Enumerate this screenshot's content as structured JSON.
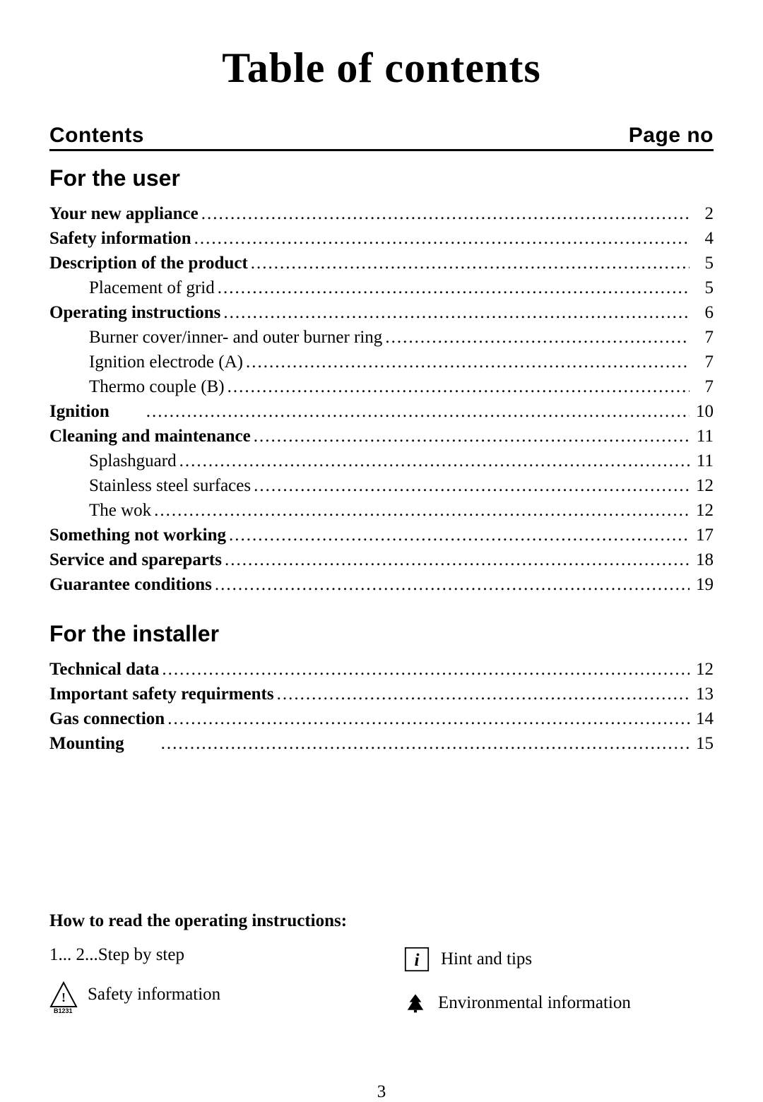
{
  "title": "Table of contents",
  "header": {
    "left": "Contents",
    "right": "Page no"
  },
  "sections": {
    "user": {
      "heading": "For the user",
      "items": [
        {
          "label": "Your new appliance",
          "page": "2",
          "bold": true
        },
        {
          "label": "Safety information",
          "page": "4",
          "bold": true
        },
        {
          "label": "Description of the product",
          "page": "5",
          "bold": true
        },
        {
          "label": "Placement of grid",
          "page": "5",
          "bold": false,
          "sub": true
        },
        {
          "label": "Operating instructions",
          "page": "6",
          "bold": true
        },
        {
          "label": "Burner cover/inner- and outer burner ring",
          "page": "7",
          "bold": false,
          "sub": true
        },
        {
          "label": "Ignition electrode (A)",
          "page": "7",
          "bold": false,
          "sub": true
        },
        {
          "label": "Thermo couple (B)",
          "page": "7",
          "bold": false,
          "sub": true
        },
        {
          "label": "Ignition",
          "page": "10",
          "bold": true,
          "gap": true
        },
        {
          "label": "Cleaning and maintenance",
          "page": "11",
          "bold": true
        },
        {
          "label": "Splashguard",
          "page": "11",
          "bold": false,
          "sub": true
        },
        {
          "label": "Stainless steel surfaces",
          "page": "12",
          "bold": false,
          "sub": true
        },
        {
          "label": "The wok",
          "page": "12",
          "bold": false,
          "sub": true
        },
        {
          "label": "Something not working",
          "page": "17",
          "bold": true
        },
        {
          "label": "Service and spareparts",
          "page": "18",
          "bold": true
        },
        {
          "label": "Guarantee conditions",
          "page": "19",
          "bold": true
        }
      ]
    },
    "installer": {
      "heading": "For the installer",
      "items": [
        {
          "label": "Technical data",
          "page": "12",
          "bold": true
        },
        {
          "label": "Important safety requirments",
          "page": "13",
          "bold": true
        },
        {
          "label": "Gas connection",
          "page": "14",
          "bold": true
        },
        {
          "label": "Mounting",
          "page": "15",
          "bold": true,
          "gap": true
        }
      ]
    }
  },
  "howto": {
    "title": "How to read the operating instructions:",
    "step_label": "1... 2...Step by step",
    "safety_label": "Safety information",
    "hint_label": "Hint and tips",
    "env_label": "Environmental information",
    "code": "B1231"
  },
  "page_number": "3",
  "colors": {
    "text": "#000000",
    "bg": "#ffffff"
  },
  "fonts": {
    "title_size": 60,
    "heading_size": 32,
    "body_size": 25,
    "header_size": 30
  }
}
